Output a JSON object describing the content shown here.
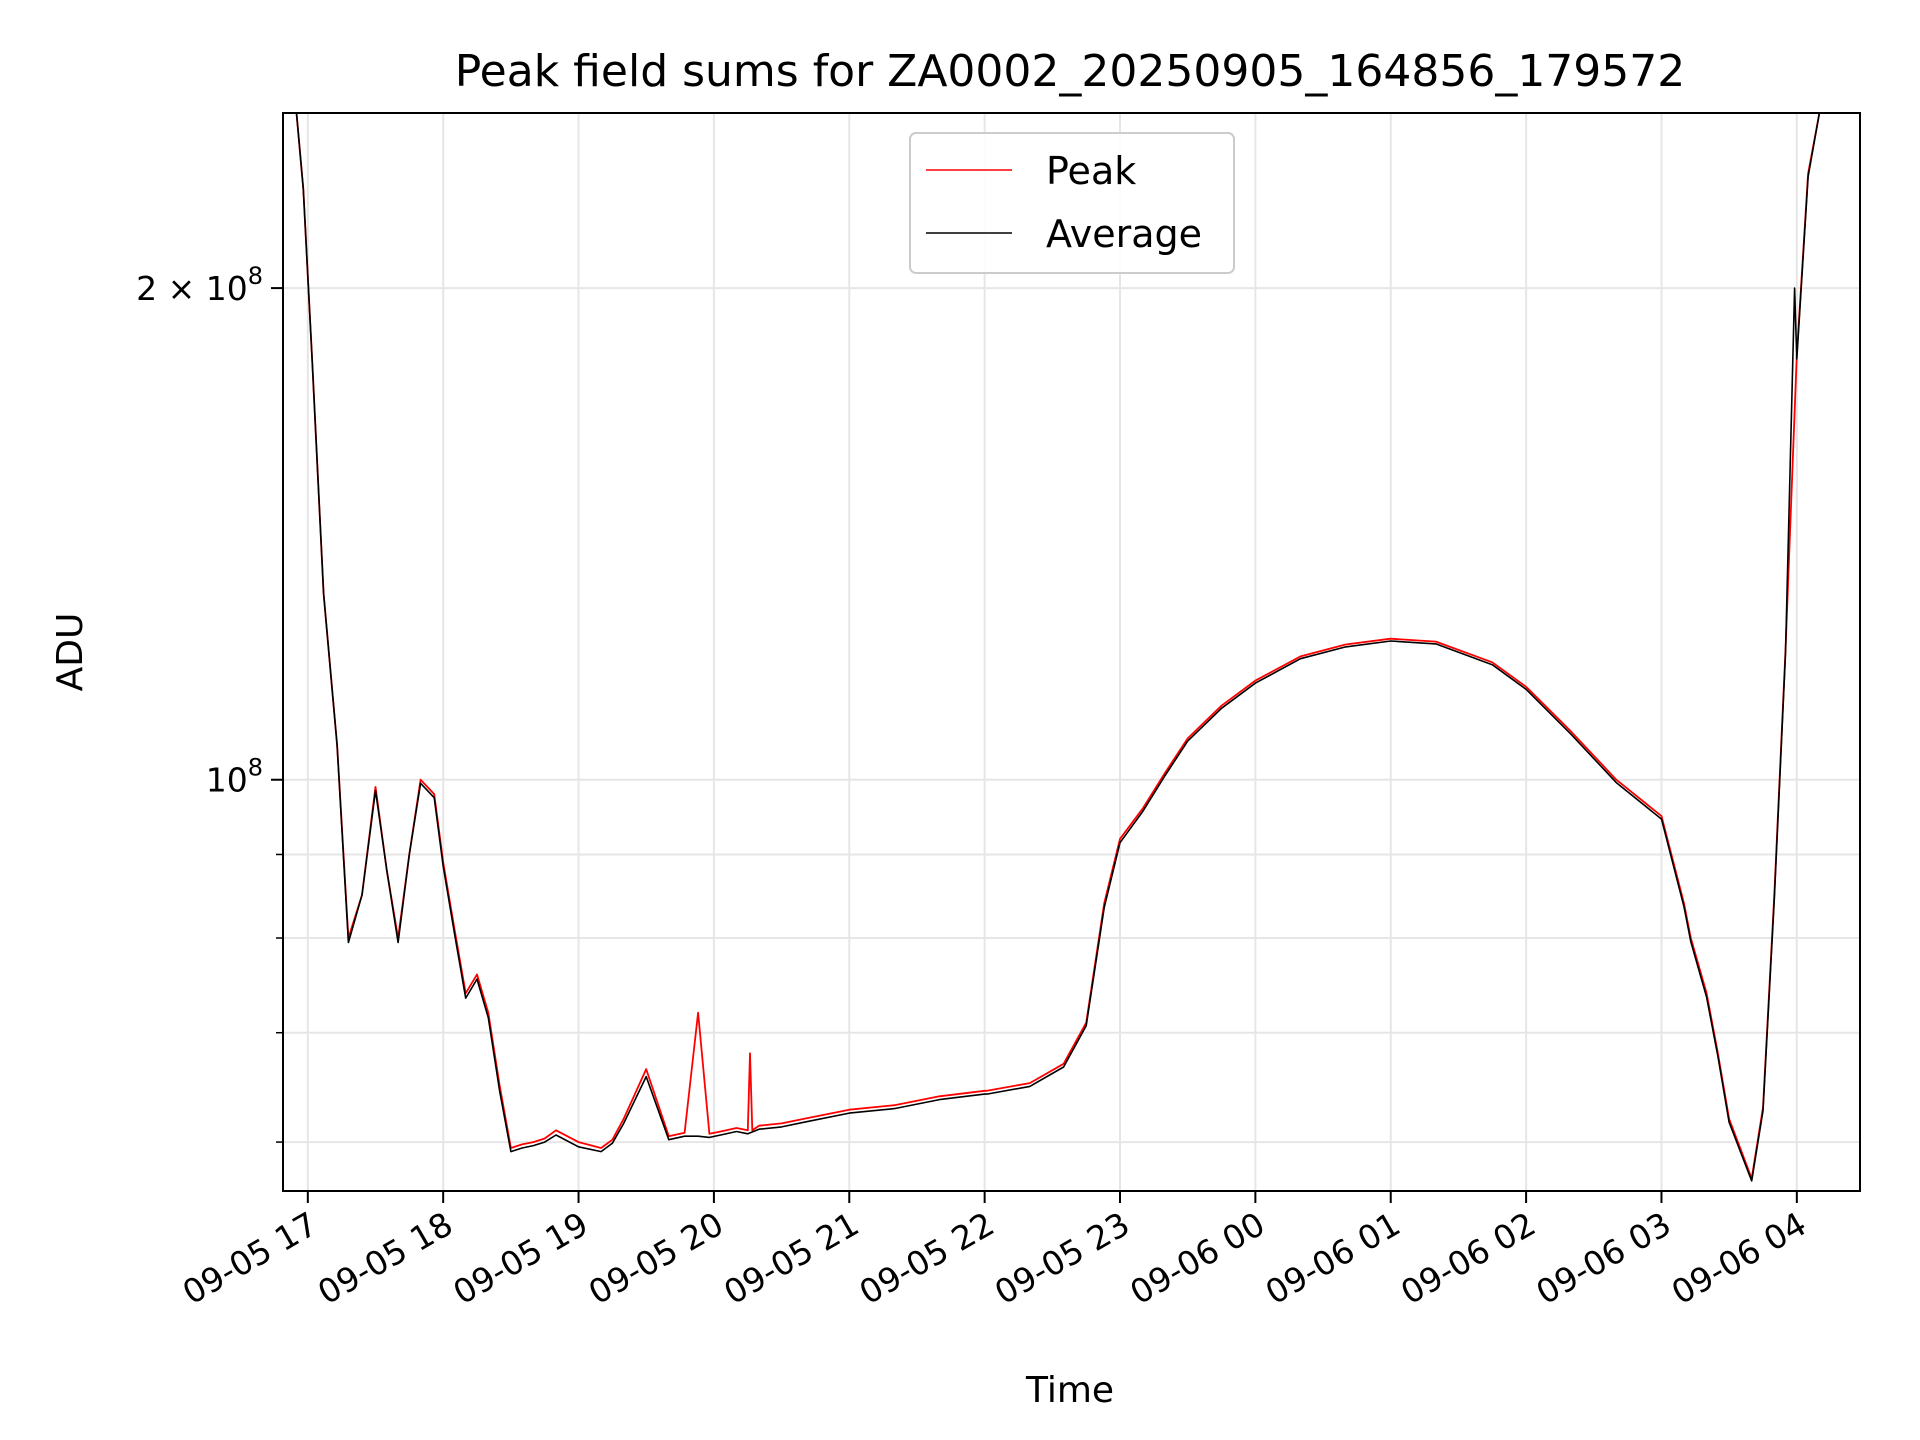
{
  "chart_data": {
    "type": "line",
    "title": "Peak field sums for ZA0002_20250905_164856_179572",
    "xlabel": "Time",
    "ylabel": "ADU",
    "y_scale": "log",
    "ylim": [
      56000000,
      256000000
    ],
    "xlim": [
      "2025-09-05 16:49",
      "2025-09-06 04:28"
    ],
    "x_ticks": [
      "2025-09-05 17:00",
      "2025-09-05 18:00",
      "2025-09-05 19:00",
      "2025-09-05 20:00",
      "2025-09-05 21:00",
      "2025-09-05 22:00",
      "2025-09-05 23:00",
      "2025-09-06 00:00",
      "2025-09-06 01:00",
      "2025-09-06 02:00",
      "2025-09-06 03:00",
      "2025-09-06 04:00"
    ],
    "x_tick_labels": [
      "09-05 17",
      "09-05 18",
      "09-05 19",
      "09-05 20",
      "09-05 21",
      "09-05 22",
      "09-05 23",
      "09-06 00",
      "09-06 01",
      "09-06 02",
      "09-06 03",
      "09-06 04"
    ],
    "y_tick_labels": [
      {
        "value": 200000000,
        "base": "2 × 10",
        "exp": "8"
      },
      {
        "value": 100000000,
        "base": "10",
        "exp": "8"
      }
    ],
    "y_minor_ticks": [
      60000000,
      70000000,
      80000000,
      90000000
    ],
    "grid": true,
    "legend": {
      "position": "top-center"
    },
    "series": [
      {
        "name": "Peak",
        "color": "#ff0000",
        "x": [
          "2025-09-05 16:49",
          "2025-09-05 16:55",
          "2025-09-05 16:58",
          "2025-09-05 17:02",
          "2025-09-05 17:07",
          "2025-09-05 17:13",
          "2025-09-05 17:18",
          "2025-09-05 17:24",
          "2025-09-05 17:30",
          "2025-09-05 17:35",
          "2025-09-05 17:40",
          "2025-09-05 17:45",
          "2025-09-05 17:50",
          "2025-09-05 17:56",
          "2025-09-05 18:00",
          "2025-09-05 18:05",
          "2025-09-05 18:10",
          "2025-09-05 18:15",
          "2025-09-05 18:20",
          "2025-09-05 18:25",
          "2025-09-05 18:30",
          "2025-09-05 18:35",
          "2025-09-05 18:40",
          "2025-09-05 18:45",
          "2025-09-05 18:50",
          "2025-09-05 19:00",
          "2025-09-05 19:10",
          "2025-09-05 19:15",
          "2025-09-05 19:20",
          "2025-09-05 19:30",
          "2025-09-05 19:40",
          "2025-09-05 19:47",
          "2025-09-05 19:53",
          "2025-09-05 19:58",
          "2025-09-05 20:03",
          "2025-09-05 20:10",
          "2025-09-05 20:15",
          "2025-09-05 20:16",
          "2025-09-05 20:17",
          "2025-09-05 20:20",
          "2025-09-05 20:30",
          "2025-09-05 20:40",
          "2025-09-05 21:00",
          "2025-09-05 21:20",
          "2025-09-05 21:40",
          "2025-09-05 22:00",
          "2025-09-05 22:01",
          "2025-09-05 22:20",
          "2025-09-05 22:35",
          "2025-09-05 22:45",
          "2025-09-05 22:53",
          "2025-09-05 23:00",
          "2025-09-05 23:10",
          "2025-09-05 23:20",
          "2025-09-05 23:30",
          "2025-09-05 23:45",
          "2025-09-06 00:00",
          "2025-09-06 00:20",
          "2025-09-06 00:40",
          "2025-09-06 01:00",
          "2025-09-06 01:20",
          "2025-09-06 01:45",
          "2025-09-06 02:00",
          "2025-09-06 02:20",
          "2025-09-06 02:40",
          "2025-09-06 03:00",
          "2025-09-06 03:10",
          "2025-09-06 03:13",
          "2025-09-06 03:20",
          "2025-09-06 03:25",
          "2025-09-06 03:30",
          "2025-09-06 03:40",
          "2025-09-06 03:45",
          "2025-09-06 03:50",
          "2025-09-06 03:55",
          "2025-09-06 04:00",
          "2025-09-06 04:05",
          "2025-09-06 04:10",
          "2025-09-06 04:15"
        ],
        "y": [
          256000000,
          256000000,
          230000000,
          180000000,
          130000000,
          105000000,
          80000000,
          85000000,
          99000000,
          88000000,
          80000000,
          90000000,
          100000000,
          98000000,
          89000000,
          81000000,
          74000000,
          76000000,
          72000000,
          65000000,
          59500000,
          59800000,
          60000000,
          60300000,
          61000000,
          60000000,
          59500000,
          60200000,
          62000000,
          66500000,
          60500000,
          60800000,
          72000000,
          60700000,
          60900000,
          61200000,
          61000000,
          68000000,
          61000000,
          61400000,
          61600000,
          62000000,
          62800000,
          63200000,
          64000000,
          64500000,
          64500000,
          65200000,
          67000000,
          71000000,
          84000000,
          92000000,
          96000000,
          101000000,
          106000000,
          111000000,
          115000000,
          119000000,
          121000000,
          122000000,
          121500000,
          118000000,
          114000000,
          107000000,
          100000000,
          95000000,
          84000000,
          80000000,
          74000000,
          68000000,
          62000000,
          57000000,
          63000000,
          85000000,
          120000000,
          182000000,
          235000000,
          256000000,
          256000000
        ]
      },
      {
        "name": "Average",
        "color": "#000000",
        "x": [
          "2025-09-05 16:49",
          "2025-09-05 16:55",
          "2025-09-05 16:58",
          "2025-09-05 17:02",
          "2025-09-05 17:07",
          "2025-09-05 17:13",
          "2025-09-05 17:18",
          "2025-09-05 17:24",
          "2025-09-05 17:30",
          "2025-09-05 17:35",
          "2025-09-05 17:40",
          "2025-09-05 17:45",
          "2025-09-05 17:50",
          "2025-09-05 17:56",
          "2025-09-05 18:00",
          "2025-09-05 18:05",
          "2025-09-05 18:10",
          "2025-09-05 18:15",
          "2025-09-05 18:20",
          "2025-09-05 18:25",
          "2025-09-05 18:30",
          "2025-09-05 18:35",
          "2025-09-05 18:40",
          "2025-09-05 18:45",
          "2025-09-05 18:50",
          "2025-09-05 19:00",
          "2025-09-05 19:10",
          "2025-09-05 19:15",
          "2025-09-05 19:20",
          "2025-09-05 19:30",
          "2025-09-05 19:40",
          "2025-09-05 19:47",
          "2025-09-05 19:53",
          "2025-09-05 19:58",
          "2025-09-05 20:03",
          "2025-09-05 20:10",
          "2025-09-05 20:15",
          "2025-09-05 20:20",
          "2025-09-05 20:30",
          "2025-09-05 20:40",
          "2025-09-05 21:00",
          "2025-09-05 21:20",
          "2025-09-05 21:40",
          "2025-09-05 22:00",
          "2025-09-05 22:01",
          "2025-09-05 22:20",
          "2025-09-05 22:35",
          "2025-09-05 22:45",
          "2025-09-05 22:53",
          "2025-09-05 23:00",
          "2025-09-05 23:10",
          "2025-09-05 23:20",
          "2025-09-05 23:30",
          "2025-09-05 23:45",
          "2025-09-06 00:00",
          "2025-09-06 00:20",
          "2025-09-06 00:40",
          "2025-09-06 01:00",
          "2025-09-06 01:20",
          "2025-09-06 01:45",
          "2025-09-06 02:00",
          "2025-09-06 02:20",
          "2025-09-06 02:40",
          "2025-09-06 03:00",
          "2025-09-06 03:10",
          "2025-09-06 03:13",
          "2025-09-06 03:20",
          "2025-09-06 03:25",
          "2025-09-06 03:30",
          "2025-09-06 03:40",
          "2025-09-06 03:45",
          "2025-09-06 03:50",
          "2025-09-06 03:55",
          "2025-09-06 03:59",
          "2025-09-06 04:00",
          "2025-09-06 04:05",
          "2025-09-06 04:10",
          "2025-09-06 04:15"
        ],
        "y": [
          256000000,
          256000000,
          230000000,
          180000000,
          130000000,
          105000000,
          79500000,
          85000000,
          98500000,
          88000000,
          79500000,
          90000000,
          99500000,
          97500000,
          88500000,
          80500000,
          73500000,
          75500000,
          71500000,
          64500000,
          59200000,
          59500000,
          59700000,
          60000000,
          60600000,
          59600000,
          59200000,
          59900000,
          61600000,
          65800000,
          60200000,
          60500000,
          60500000,
          60400000,
          60600000,
          60900000,
          60700000,
          61100000,
          61300000,
          61700000,
          62500000,
          62900000,
          63700000,
          64200000,
          64200000,
          64900000,
          66700000,
          70700000,
          83500000,
          91500000,
          95600000,
          100600000,
          105600000,
          110600000,
          114600000,
          118600000,
          120600000,
          121600000,
          121100000,
          117600000,
          113600000,
          106600000,
          99600000,
          94600000,
          83600000,
          79600000,
          73600000,
          67700000,
          61700000,
          56800000,
          62700000,
          84500000,
          119500000,
          200000000,
          181000000,
          234000000,
          256000000,
          256000000
        ]
      }
    ]
  }
}
